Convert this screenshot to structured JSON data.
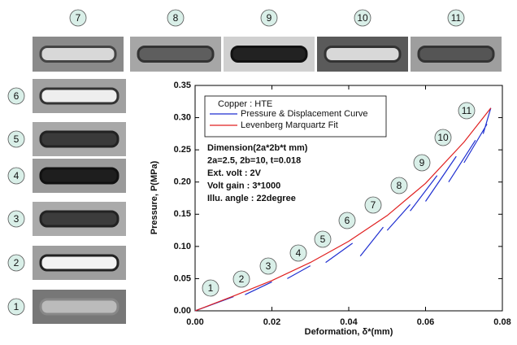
{
  "chart_data": {
    "type": "line",
    "xlabel": "Deformation, δ*(mm)",
    "ylabel": "Pressure, P(MPa)",
    "xlim": [
      0,
      0.08
    ],
    "xticks": [
      {
        "value": 0,
        "label": "0.00"
      },
      0.02,
      0.04,
      0.06,
      0.08
    ],
    "ylim": [
      0,
      0.35
    ],
    "yticks": [
      {
        "value": 0,
        "label": "0.00"
      },
      0.05,
      {
        "value": 0.1,
        "label": "0.10"
      },
      0.15,
      {
        "value": 0.2,
        "label": "0.20"
      },
      0.25,
      {
        "value": 0.3,
        "label": "0.30"
      },
      0.35
    ],
    "legend_title": "Copper : HTE",
    "series": [
      {
        "name": "Pressure & Displacement Curve",
        "color": "#1f2fd0",
        "x": [
          0.0,
          0.01,
          null,
          0.013,
          0.02,
          null,
          0.024,
          0.03,
          null,
          0.034,
          0.041,
          null,
          0.043,
          0.049,
          null,
          0.05,
          0.056,
          null,
          0.056,
          0.063,
          null,
          0.06,
          0.068,
          null,
          0.066,
          0.073,
          null,
          0.07,
          0.076,
          null,
          0.075,
          0.077
        ],
        "values": [
          0.0,
          0.022,
          null,
          0.025,
          0.045,
          null,
          0.05,
          0.07,
          null,
          0.075,
          0.105,
          null,
          0.085,
          0.13,
          null,
          0.125,
          0.165,
          null,
          0.155,
          0.21,
          null,
          0.17,
          0.24,
          null,
          0.2,
          0.265,
          null,
          0.23,
          0.29,
          null,
          0.275,
          0.315
        ]
      },
      {
        "name": "Levenberg Marquartz Fit",
        "color": "#e02020",
        "x": [
          0,
          0.01,
          0.02,
          0.03,
          0.04,
          0.05,
          0.06,
          0.07,
          0.077
        ],
        "values": [
          0,
          0.023,
          0.047,
          0.075,
          0.108,
          0.148,
          0.198,
          0.262,
          0.315
        ]
      }
    ],
    "annotations": [
      "Dimension(2a*2b*t mm)",
      "2a=2.5, 2b=10, t=0.018",
      "Ext. volt : 2V",
      "Volt gain : 3*1000",
      "Illu. angle : 22degree"
    ],
    "point_labels": [
      "1",
      "2",
      "3",
      "4",
      "5",
      "6",
      "7",
      "8",
      "9",
      "10",
      "11"
    ],
    "top_panel_labels": [
      "7",
      "8",
      "9",
      "10",
      "11"
    ],
    "left_panel_labels": [
      "6",
      "5",
      "4",
      "3",
      "2",
      "1"
    ]
  }
}
